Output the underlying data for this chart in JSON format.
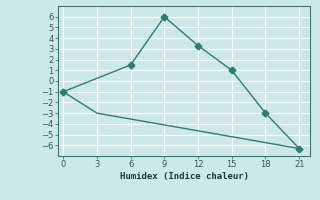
{
  "line1_x": [
    0,
    6,
    9,
    12,
    15,
    18,
    21
  ],
  "line1_y": [
    -1,
    1.5,
    6,
    3.3,
    1,
    -3,
    -6.3
  ],
  "line2_x": [
    0,
    3,
    21
  ],
  "line2_y": [
    -1,
    -3,
    -6.3
  ],
  "line_color": "#2d7d72",
  "marker": "*",
  "xlabel": "Humidex (Indice chaleur)",
  "xlim": [
    -0.5,
    22
  ],
  "ylim": [
    -7,
    7
  ],
  "yticks": [
    -6,
    -5,
    -4,
    -3,
    -2,
    -1,
    0,
    1,
    2,
    3,
    4,
    5,
    6
  ],
  "xticks": [
    0,
    3,
    6,
    9,
    12,
    15,
    18,
    21
  ],
  "bg_color": "#cde8e8",
  "grid_color": "#ffffff",
  "spine_color": "#2d7d72"
}
